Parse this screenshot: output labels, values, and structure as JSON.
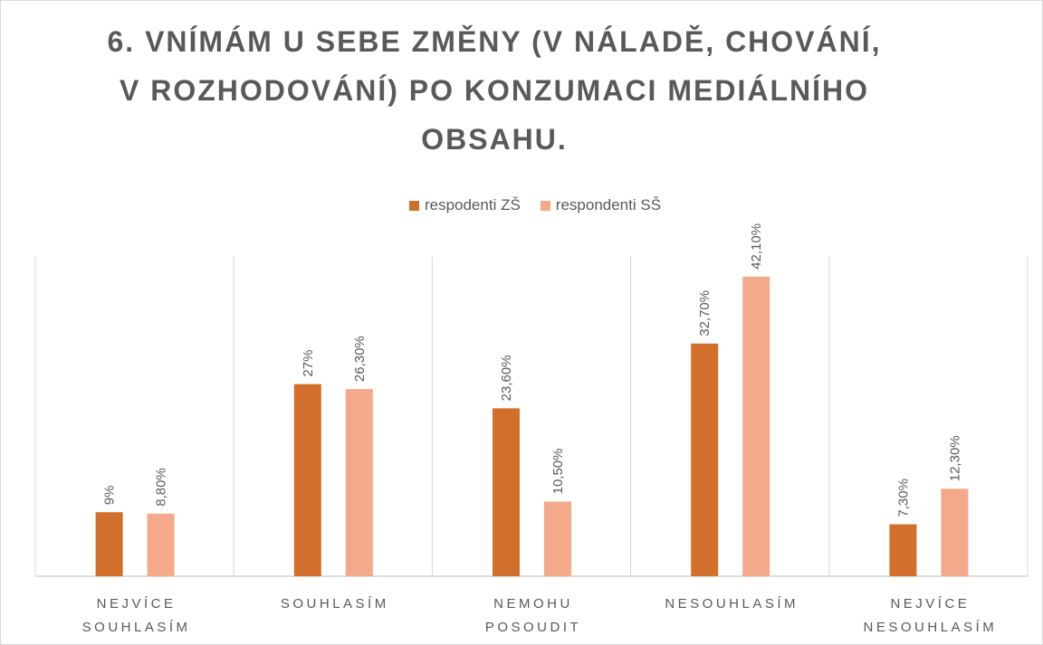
{
  "chart_data": {
    "type": "bar",
    "title": "6. VNÍMÁM U SEBE ZMĚNY (V NÁLADĚ, CHOVÁNÍ, V ROZHODOVÁNÍ) PO KONZUMACI MEDIÁLNÍHO OBSAHU.",
    "categories": [
      "NEJVÍCE SOUHLASÍM",
      "SOUHLASÍM",
      "NEMOHU POSOUDIT",
      "NESOUHLASÍM",
      "NEJVÍCE NESOUHLASÍM"
    ],
    "series": [
      {
        "name": "respodenti ZŠ",
        "color": "#d26f2c",
        "values": [
          9,
          27,
          23.6,
          32.7,
          7.3
        ],
        "value_labels": [
          "9%",
          "27%",
          "23,60%",
          "32,70%",
          "7,30%"
        ]
      },
      {
        "name": "respondenti SŠ",
        "color": "#f4a98a",
        "values": [
          8.8,
          26.3,
          10.5,
          42.1,
          12.3
        ],
        "value_labels": [
          "8,80%",
          "26,30%",
          "10,50%",
          "42,10%",
          "12,30%"
        ]
      }
    ],
    "ylim": [
      0,
      45
    ],
    "legend": "top"
  }
}
